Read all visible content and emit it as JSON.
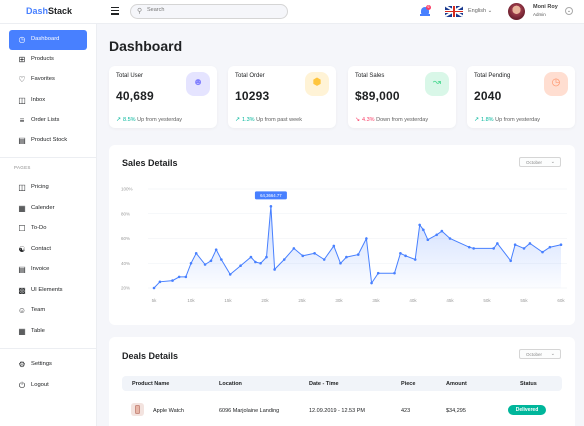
{
  "app": {
    "logo_part1": "Dash",
    "logo_part2": "Stack"
  },
  "topbar": {
    "search_placeholder": "Search",
    "notification_count": "6",
    "language": "English",
    "user_name": "Moni Roy",
    "user_role": "Admin"
  },
  "sidebar": {
    "items": [
      {
        "label": "Dashboard",
        "icon": "speedometer-icon",
        "active": true
      },
      {
        "label": "Products",
        "icon": "grid-icon"
      },
      {
        "label": "Favorites",
        "icon": "heart-icon"
      },
      {
        "label": "Inbox",
        "icon": "inbox-icon"
      },
      {
        "label": "Order Lists",
        "icon": "list-icon"
      },
      {
        "label": "Product Stock",
        "icon": "stock-icon"
      }
    ],
    "section_label": "PAGES",
    "pages": [
      {
        "label": "Pricing",
        "icon": "gift-icon"
      },
      {
        "label": "Calender",
        "icon": "calendar-icon"
      },
      {
        "label": "To-Do",
        "icon": "clipboard-icon"
      },
      {
        "label": "Contact",
        "icon": "contacts-icon"
      },
      {
        "label": "Invoice",
        "icon": "invoice-icon"
      },
      {
        "label": "UI Elements",
        "icon": "bar-chart-icon"
      },
      {
        "label": "Team",
        "icon": "person-icon"
      },
      {
        "label": "Table",
        "icon": "table-icon"
      }
    ],
    "footer": [
      {
        "label": "Settings",
        "icon": "gear-icon"
      },
      {
        "label": "Logout",
        "icon": "power-icon"
      }
    ]
  },
  "page_title": "Dashboard",
  "stats": [
    {
      "label": "Total User",
      "value": "40,689",
      "pct": "8.5%",
      "suffix": " Up from yesterday",
      "direction": "up",
      "icon": "users-icon",
      "icon_bg": "#e5e4ff",
      "icon_color": "#8280ff"
    },
    {
      "label": "Total Order",
      "value": "10293",
      "pct": "1.3%",
      "suffix": " Up from past week",
      "direction": "up",
      "icon": "box-icon",
      "icon_bg": "#fff3d6",
      "icon_color": "#fec53d"
    },
    {
      "label": "Total Sales",
      "value": "$89,000",
      "pct": "4.3%",
      "suffix": " Down from yesterday",
      "direction": "down",
      "icon": "line-chart-icon",
      "icon_bg": "#d9f7e8",
      "icon_color": "#4ad991"
    },
    {
      "label": "Total Pending",
      "value": "2040",
      "pct": "1.8%",
      "suffix": " Up from yesterday",
      "direction": "up",
      "icon": "clock-icon",
      "icon_bg": "#ffded1",
      "icon_color": "#ff9066"
    }
  ],
  "sales": {
    "title": "Sales Details",
    "month": "October"
  },
  "chart_data": {
    "type": "area",
    "x_ticks": [
      "5k",
      "10k",
      "15k",
      "20k",
      "25k",
      "30k",
      "35k",
      "40k",
      "45k",
      "50k",
      "55k",
      "60k"
    ],
    "y_ticks": [
      "20%",
      "40%",
      "60%",
      "80%",
      "100%"
    ],
    "ylim": [
      20,
      100
    ],
    "xlim": [
      5,
      60
    ],
    "annotation": {
      "label": "64,3664.77",
      "x": 20.8,
      "y": 86
    },
    "series": [
      {
        "values": [
          [
            5.0,
            20
          ],
          [
            5.8,
            25
          ],
          [
            7.5,
            26
          ],
          [
            8.4,
            29
          ],
          [
            9.3,
            29
          ],
          [
            10.0,
            40
          ],
          [
            10.7,
            48
          ],
          [
            11.9,
            39
          ],
          [
            12.7,
            42
          ],
          [
            13.4,
            51
          ],
          [
            14.1,
            43
          ],
          [
            15.3,
            31
          ],
          [
            16.7,
            38
          ],
          [
            18.1,
            45
          ],
          [
            18.7,
            41
          ],
          [
            19.4,
            40
          ],
          [
            20.2,
            45
          ],
          [
            20.8,
            86
          ],
          [
            21.3,
            35
          ],
          [
            22.6,
            43
          ],
          [
            23.9,
            52
          ],
          [
            25.1,
            46
          ],
          [
            26.7,
            48
          ],
          [
            28.0,
            43
          ],
          [
            29.3,
            54
          ],
          [
            30.2,
            40
          ],
          [
            31.0,
            45
          ],
          [
            32.6,
            47
          ],
          [
            33.7,
            60
          ],
          [
            34.4,
            24
          ],
          [
            35.3,
            32
          ],
          [
            37.5,
            32
          ],
          [
            38.3,
            48
          ],
          [
            39.0,
            46
          ],
          [
            40.3,
            43
          ],
          [
            40.9,
            71
          ],
          [
            41.4,
            67
          ],
          [
            42.0,
            59
          ],
          [
            43.2,
            63
          ],
          [
            43.9,
            66
          ],
          [
            45.0,
            60
          ],
          [
            47.6,
            53
          ],
          [
            48.2,
            52
          ],
          [
            50.9,
            52
          ],
          [
            51.4,
            56
          ],
          [
            53.2,
            42
          ],
          [
            53.8,
            55
          ],
          [
            55.0,
            52
          ],
          [
            55.8,
            56
          ],
          [
            57.5,
            49
          ],
          [
            58.5,
            53
          ],
          [
            60.0,
            55
          ]
        ]
      }
    ],
    "xlabel": "",
    "ylabel": "",
    "grid": true,
    "accent_color": "#4880ff"
  },
  "deals": {
    "title": "Deals Details",
    "month": "October",
    "columns": [
      "Product Name",
      "Location",
      "Date - Time",
      "Piece",
      "Amount",
      "Status"
    ],
    "rows": [
      {
        "product": "Apple Watch",
        "location": "6096 Marjolaine Landing",
        "date": "12.09.2019 - 12.53 PM",
        "piece": "423",
        "amount": "$34,295",
        "status": "Delivered"
      }
    ]
  }
}
